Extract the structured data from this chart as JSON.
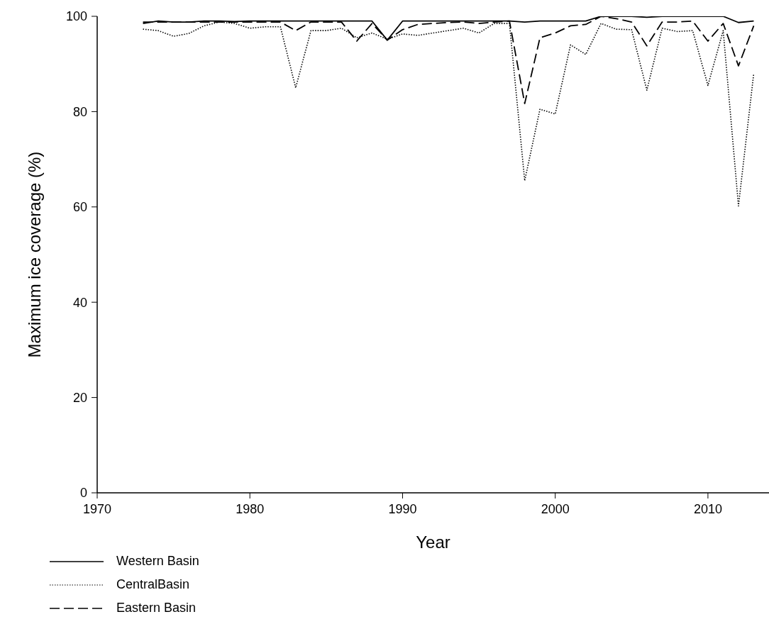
{
  "chart_data": {
    "type": "line",
    "xlabel": "Year",
    "ylabel": "Maximum ice coverage (%)",
    "x": [
      1973,
      1974,
      1975,
      1976,
      1977,
      1978,
      1979,
      1980,
      1981,
      1982,
      1983,
      1984,
      1985,
      1986,
      1987,
      1988,
      1989,
      1990,
      1991,
      1992,
      1993,
      1994,
      1995,
      1996,
      1997,
      1998,
      1999,
      2000,
      2001,
      2002,
      2003,
      2004,
      2005,
      2006,
      2007,
      2008,
      2009,
      2010,
      2011,
      2012,
      2013
    ],
    "series": [
      {
        "name": "Western Basin",
        "color": "#000000",
        "line_style": "solid",
        "values": [
          98.5,
          99,
          98.8,
          98.8,
          99,
          99,
          98.9,
          99,
          99,
          99,
          99,
          99,
          99,
          99,
          99,
          99,
          95,
          99,
          99,
          99,
          99,
          99,
          99,
          99,
          99,
          98.8,
          99,
          99,
          99,
          99,
          100,
          100,
          100,
          99.8,
          100,
          100,
          100,
          100,
          100,
          98.7,
          99
        ]
      },
      {
        "name": "CentralBasin",
        "color": "#000000",
        "line_style": "dotted",
        "values": [
          97.3,
          97,
          95.8,
          96.4,
          98,
          98.8,
          98.5,
          97.5,
          97.8,
          97.8,
          85,
          97,
          97,
          97.5,
          95.5,
          96.5,
          95.2,
          96.3,
          96,
          96.5,
          97,
          97.5,
          96.5,
          98.5,
          98.5,
          65.5,
          80.5,
          79.5,
          94,
          92,
          98.5,
          97.3,
          97.2,
          84.5,
          97.5,
          96.8,
          97,
          85.5,
          97,
          60.2,
          88
        ]
      },
      {
        "name": "Eastern Basin",
        "color": "#000000",
        "line_style": "dashed",
        "values": [
          98.8,
          98.8,
          98.8,
          98.8,
          98.8,
          98.8,
          98.8,
          98.8,
          98.8,
          98.8,
          97,
          98.8,
          98.8,
          98.8,
          94.8,
          98.5,
          95,
          97.2,
          98.3,
          98.5,
          98.7,
          98.8,
          98.5,
          98.8,
          99,
          81.7,
          95.5,
          96.5,
          98,
          98.3,
          100,
          99.5,
          98.8,
          93.8,
          98.8,
          98.8,
          99,
          94.8,
          98.5,
          89.6,
          98
        ]
      }
    ],
    "xlim": [
      1970,
      2014
    ],
    "xticks": [
      1970,
      1980,
      1990,
      2000,
      2010
    ],
    "ylim": [
      0,
      100
    ],
    "yticks": [
      0,
      20,
      40,
      60,
      80,
      100
    ],
    "grid": false,
    "legend": "bottom left"
  }
}
